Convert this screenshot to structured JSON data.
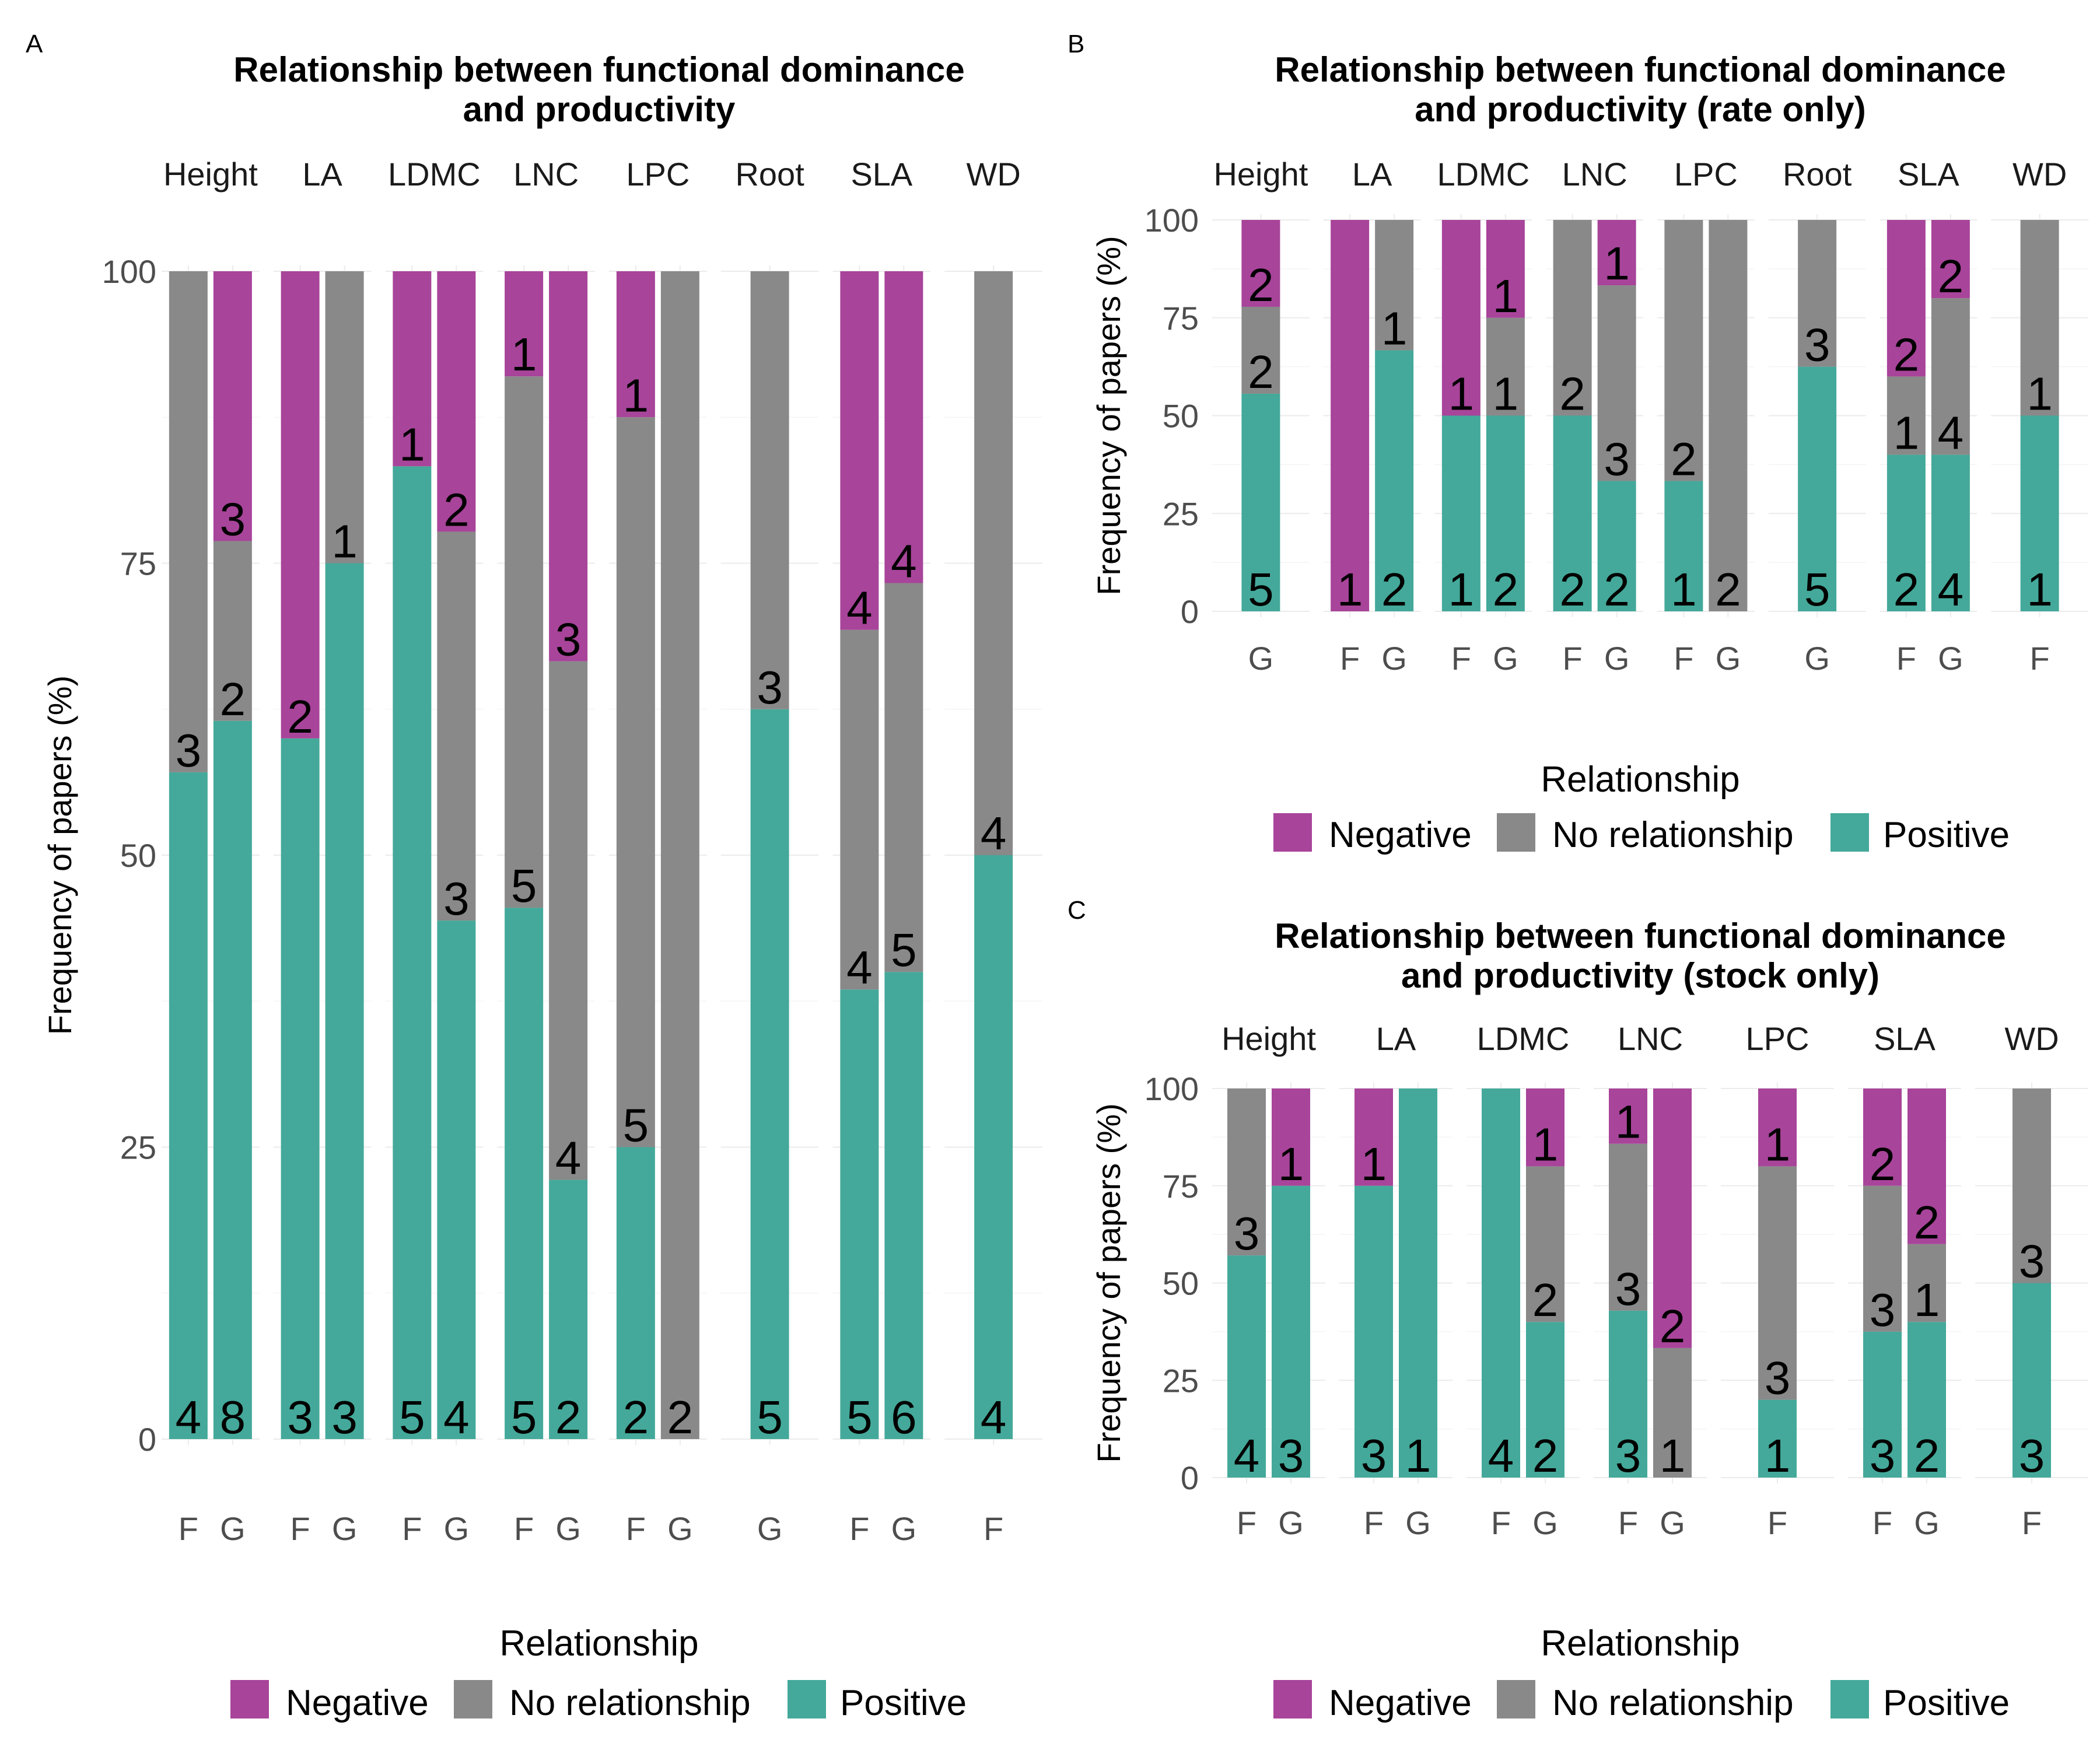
{
  "figure": {
    "legend": {
      "title": "Relationship",
      "entries": [
        "Negative",
        "No relationship",
        "Positive"
      ]
    },
    "colors": {
      "Negative": "#a8449a",
      "No relationship": "#898989",
      "Positive": "#44a99a",
      "grid": "#ebebeb"
    },
    "y_axis_label": "Frequency of papers (%)"
  },
  "chart_data": [
    {
      "panel": "A",
      "type": "bar",
      "stacked": true,
      "title": "Relationship between functional dominance\nand productivity",
      "ylabel": "Frequency of papers (%)",
      "ylim": [
        0,
        100
      ],
      "yticks": [
        0,
        25,
        50,
        75,
        100
      ],
      "legend_position": "bottom",
      "facets": [
        {
          "name": "Height",
          "bars": [
            {
              "x": "F",
              "segments": [
                {
                  "rel": "Positive",
                  "value": 57.1,
                  "label": "4"
                },
                {
                  "rel": "No relationship",
                  "value": 42.9,
                  "label": "3"
                }
              ]
            },
            {
              "x": "G",
              "segments": [
                {
                  "rel": "Positive",
                  "value": 61.5,
                  "label": "8"
                },
                {
                  "rel": "No relationship",
                  "value": 15.4,
                  "label": "2"
                },
                {
                  "rel": "Negative",
                  "value": 23.1,
                  "label": "3"
                }
              ]
            }
          ]
        },
        {
          "name": "LA",
          "bars": [
            {
              "x": "F",
              "segments": [
                {
                  "rel": "Positive",
                  "value": 60,
                  "label": "3"
                },
                {
                  "rel": "Negative",
                  "value": 40,
                  "label": "2"
                }
              ]
            },
            {
              "x": "G",
              "segments": [
                {
                  "rel": "Positive",
                  "value": 75,
                  "label": "3"
                },
                {
                  "rel": "No relationship",
                  "value": 25,
                  "label": "1"
                }
              ]
            }
          ]
        },
        {
          "name": "LDMC",
          "bars": [
            {
              "x": "F",
              "segments": [
                {
                  "rel": "Positive",
                  "value": 83.3,
                  "label": "5"
                },
                {
                  "rel": "Negative",
                  "value": 16.7,
                  "label": "1"
                }
              ]
            },
            {
              "x": "G",
              "segments": [
                {
                  "rel": "Positive",
                  "value": 44.4,
                  "label": "4"
                },
                {
                  "rel": "No relationship",
                  "value": 33.3,
                  "label": "3"
                },
                {
                  "rel": "Negative",
                  "value": 22.3,
                  "label": "2"
                }
              ]
            }
          ]
        },
        {
          "name": "LNC",
          "bars": [
            {
              "x": "F",
              "segments": [
                {
                  "rel": "Positive",
                  "value": 45.5,
                  "label": "5"
                },
                {
                  "rel": "No relationship",
                  "value": 45.5,
                  "label": "5"
                },
                {
                  "rel": "Negative",
                  "value": 9.0,
                  "label": "1"
                }
              ]
            },
            {
              "x": "G",
              "segments": [
                {
                  "rel": "Positive",
                  "value": 22.2,
                  "label": "2"
                },
                {
                  "rel": "No relationship",
                  "value": 44.4,
                  "label": "4"
                },
                {
                  "rel": "Negative",
                  "value": 33.4,
                  "label": "3"
                }
              ]
            }
          ]
        },
        {
          "name": "LPC",
          "bars": [
            {
              "x": "F",
              "segments": [
                {
                  "rel": "Positive",
                  "value": 25,
                  "label": "2"
                },
                {
                  "rel": "No relationship",
                  "value": 62.5,
                  "label": "5"
                },
                {
                  "rel": "Negative",
                  "value": 12.5,
                  "label": "1"
                }
              ]
            },
            {
              "x": "G",
              "segments": [
                {
                  "rel": "No relationship",
                  "value": 100,
                  "label": "2"
                }
              ]
            }
          ]
        },
        {
          "name": "Root",
          "bars": [
            {
              "x": "G",
              "segments": [
                {
                  "rel": "Positive",
                  "value": 62.5,
                  "label": "5"
                },
                {
                  "rel": "No relationship",
                  "value": 37.5,
                  "label": "3"
                }
              ]
            }
          ]
        },
        {
          "name": "SLA",
          "bars": [
            {
              "x": "F",
              "segments": [
                {
                  "rel": "Positive",
                  "value": 38.5,
                  "label": "5"
                },
                {
                  "rel": "No relationship",
                  "value": 30.8,
                  "label": "4"
                },
                {
                  "rel": "Negative",
                  "value": 30.7,
                  "label": "4"
                }
              ]
            },
            {
              "x": "G",
              "segments": [
                {
                  "rel": "Positive",
                  "value": 40,
                  "label": "6"
                },
                {
                  "rel": "No relationship",
                  "value": 33.3,
                  "label": "5"
                },
                {
                  "rel": "Negative",
                  "value": 26.7,
                  "label": "4"
                }
              ]
            }
          ]
        },
        {
          "name": "WD",
          "bars": [
            {
              "x": "F",
              "segments": [
                {
                  "rel": "Positive",
                  "value": 50,
                  "label": "4"
                },
                {
                  "rel": "No relationship",
                  "value": 50,
                  "label": "4"
                }
              ]
            }
          ]
        }
      ]
    },
    {
      "panel": "B",
      "type": "bar",
      "stacked": true,
      "title": "Relationship between functional dominance\nand productivity (rate only)",
      "ylabel": "Frequency of papers (%)",
      "ylim": [
        0,
        100
      ],
      "yticks": [
        0,
        25,
        50,
        75,
        100
      ],
      "legend_position": "bottom",
      "facets": [
        {
          "name": "Height",
          "bars": [
            {
              "x": "G",
              "segments": [
                {
                  "rel": "Positive",
                  "value": 55.6,
                  "label": "5"
                },
                {
                  "rel": "No relationship",
                  "value": 22.2,
                  "label": "2"
                },
                {
                  "rel": "Negative",
                  "value": 22.2,
                  "label": "2"
                }
              ]
            }
          ]
        },
        {
          "name": "LA",
          "bars": [
            {
              "x": "F",
              "segments": [
                {
                  "rel": "Negative",
                  "value": 100,
                  "label": "1"
                }
              ]
            },
            {
              "x": "G",
              "segments": [
                {
                  "rel": "Positive",
                  "value": 66.7,
                  "label": "2"
                },
                {
                  "rel": "No relationship",
                  "value": 33.3,
                  "label": "1"
                }
              ]
            }
          ]
        },
        {
          "name": "LDMC",
          "bars": [
            {
              "x": "F",
              "segments": [
                {
                  "rel": "Positive",
                  "value": 50,
                  "label": "1"
                },
                {
                  "rel": "Negative",
                  "value": 50,
                  "label": "1"
                }
              ]
            },
            {
              "x": "G",
              "segments": [
                {
                  "rel": "Positive",
                  "value": 50,
                  "label": "2"
                },
                {
                  "rel": "No relationship",
                  "value": 25,
                  "label": "1"
                },
                {
                  "rel": "Negative",
                  "value": 25,
                  "label": "1"
                }
              ]
            }
          ]
        },
        {
          "name": "LNC",
          "bars": [
            {
              "x": "F",
              "segments": [
                {
                  "rel": "Positive",
                  "value": 50,
                  "label": "2"
                },
                {
                  "rel": "No relationship",
                  "value": 50,
                  "label": "2"
                }
              ]
            },
            {
              "x": "G",
              "segments": [
                {
                  "rel": "Positive",
                  "value": 33.3,
                  "label": "2"
                },
                {
                  "rel": "No relationship",
                  "value": 50,
                  "label": "3"
                },
                {
                  "rel": "Negative",
                  "value": 16.7,
                  "label": "1"
                }
              ]
            }
          ]
        },
        {
          "name": "LPC",
          "bars": [
            {
              "x": "F",
              "segments": [
                {
                  "rel": "Positive",
                  "value": 33.3,
                  "label": "1"
                },
                {
                  "rel": "No relationship",
                  "value": 66.7,
                  "label": "2"
                }
              ]
            },
            {
              "x": "G",
              "segments": [
                {
                  "rel": "No relationship",
                  "value": 100,
                  "label": "2"
                }
              ]
            }
          ]
        },
        {
          "name": "Root",
          "bars": [
            {
              "x": "G",
              "segments": [
                {
                  "rel": "Positive",
                  "value": 62.5,
                  "label": "5"
                },
                {
                  "rel": "No relationship",
                  "value": 37.5,
                  "label": "3"
                }
              ]
            }
          ]
        },
        {
          "name": "SLA",
          "bars": [
            {
              "x": "F",
              "segments": [
                {
                  "rel": "Positive",
                  "value": 40,
                  "label": "2"
                },
                {
                  "rel": "No relationship",
                  "value": 20,
                  "label": "1"
                },
                {
                  "rel": "Negative",
                  "value": 40,
                  "label": "2"
                }
              ]
            },
            {
              "x": "G",
              "segments": [
                {
                  "rel": "Positive",
                  "value": 40,
                  "label": "4"
                },
                {
                  "rel": "No relationship",
                  "value": 40,
                  "label": "4"
                },
                {
                  "rel": "Negative",
                  "value": 20,
                  "label": "2"
                }
              ]
            }
          ]
        },
        {
          "name": "WD",
          "bars": [
            {
              "x": "F",
              "segments": [
                {
                  "rel": "Positive",
                  "value": 50,
                  "label": "1"
                },
                {
                  "rel": "No relationship",
                  "value": 50,
                  "label": "1"
                }
              ]
            }
          ]
        }
      ]
    },
    {
      "panel": "C",
      "type": "bar",
      "stacked": true,
      "title": "Relationship between functional dominance\nand productivity (stock only)",
      "ylabel": "Frequency of papers (%)",
      "ylim": [
        0,
        100
      ],
      "yticks": [
        0,
        25,
        50,
        75,
        100
      ],
      "legend_position": "bottom",
      "facets": [
        {
          "name": "Height",
          "bars": [
            {
              "x": "F",
              "segments": [
                {
                  "rel": "Positive",
                  "value": 57.1,
                  "label": "4"
                },
                {
                  "rel": "No relationship",
                  "value": 42.9,
                  "label": "3"
                }
              ]
            },
            {
              "x": "G",
              "segments": [
                {
                  "rel": "Positive",
                  "value": 75,
                  "label": "3"
                },
                {
                  "rel": "Negative",
                  "value": 25,
                  "label": "1"
                }
              ]
            }
          ]
        },
        {
          "name": "LA",
          "bars": [
            {
              "x": "F",
              "segments": [
                {
                  "rel": "Positive",
                  "value": 75,
                  "label": "3"
                },
                {
                  "rel": "Negative",
                  "value": 25,
                  "label": "1"
                }
              ]
            },
            {
              "x": "G",
              "segments": [
                {
                  "rel": "Positive",
                  "value": 100,
                  "label": "1"
                }
              ]
            }
          ]
        },
        {
          "name": "LDMC",
          "bars": [
            {
              "x": "F",
              "segments": [
                {
                  "rel": "Positive",
                  "value": 100,
                  "label": "4"
                }
              ]
            },
            {
              "x": "G",
              "segments": [
                {
                  "rel": "Positive",
                  "value": 40,
                  "label": "2"
                },
                {
                  "rel": "No relationship",
                  "value": 40,
                  "label": "2"
                },
                {
                  "rel": "Negative",
                  "value": 20,
                  "label": "1"
                }
              ]
            }
          ]
        },
        {
          "name": "LNC",
          "bars": [
            {
              "x": "F",
              "segments": [
                {
                  "rel": "Positive",
                  "value": 42.9,
                  "label": "3"
                },
                {
                  "rel": "No relationship",
                  "value": 42.9,
                  "label": "3"
                },
                {
                  "rel": "Negative",
                  "value": 14.2,
                  "label": "1"
                }
              ]
            },
            {
              "x": "G",
              "segments": [
                {
                  "rel": "No relationship",
                  "value": 33.3,
                  "label": "1"
                },
                {
                  "rel": "Negative",
                  "value": 66.7,
                  "label": "2"
                }
              ]
            }
          ]
        },
        {
          "name": "LPC",
          "bars": [
            {
              "x": "F",
              "segments": [
                {
                  "rel": "Positive",
                  "value": 20,
                  "label": "1"
                },
                {
                  "rel": "No relationship",
                  "value": 60,
                  "label": "3"
                },
                {
                  "rel": "Negative",
                  "value": 20,
                  "label": "1"
                }
              ]
            }
          ]
        },
        {
          "name": "SLA",
          "bars": [
            {
              "x": "F",
              "segments": [
                {
                  "rel": "Positive",
                  "value": 37.5,
                  "label": "3"
                },
                {
                  "rel": "No relationship",
                  "value": 37.5,
                  "label": "3"
                },
                {
                  "rel": "Negative",
                  "value": 25,
                  "label": "2"
                }
              ]
            },
            {
              "x": "G",
              "segments": [
                {
                  "rel": "Positive",
                  "value": 40,
                  "label": "2"
                },
                {
                  "rel": "No relationship",
                  "value": 20,
                  "label": "1"
                },
                {
                  "rel": "Negative",
                  "value": 40,
                  "label": "2"
                }
              ]
            }
          ]
        },
        {
          "name": "WD",
          "bars": [
            {
              "x": "F",
              "segments": [
                {
                  "rel": "Positive",
                  "value": 50,
                  "label": "3"
                },
                {
                  "rel": "No relationship",
                  "value": 50,
                  "label": "3"
                }
              ]
            }
          ]
        }
      ]
    }
  ]
}
